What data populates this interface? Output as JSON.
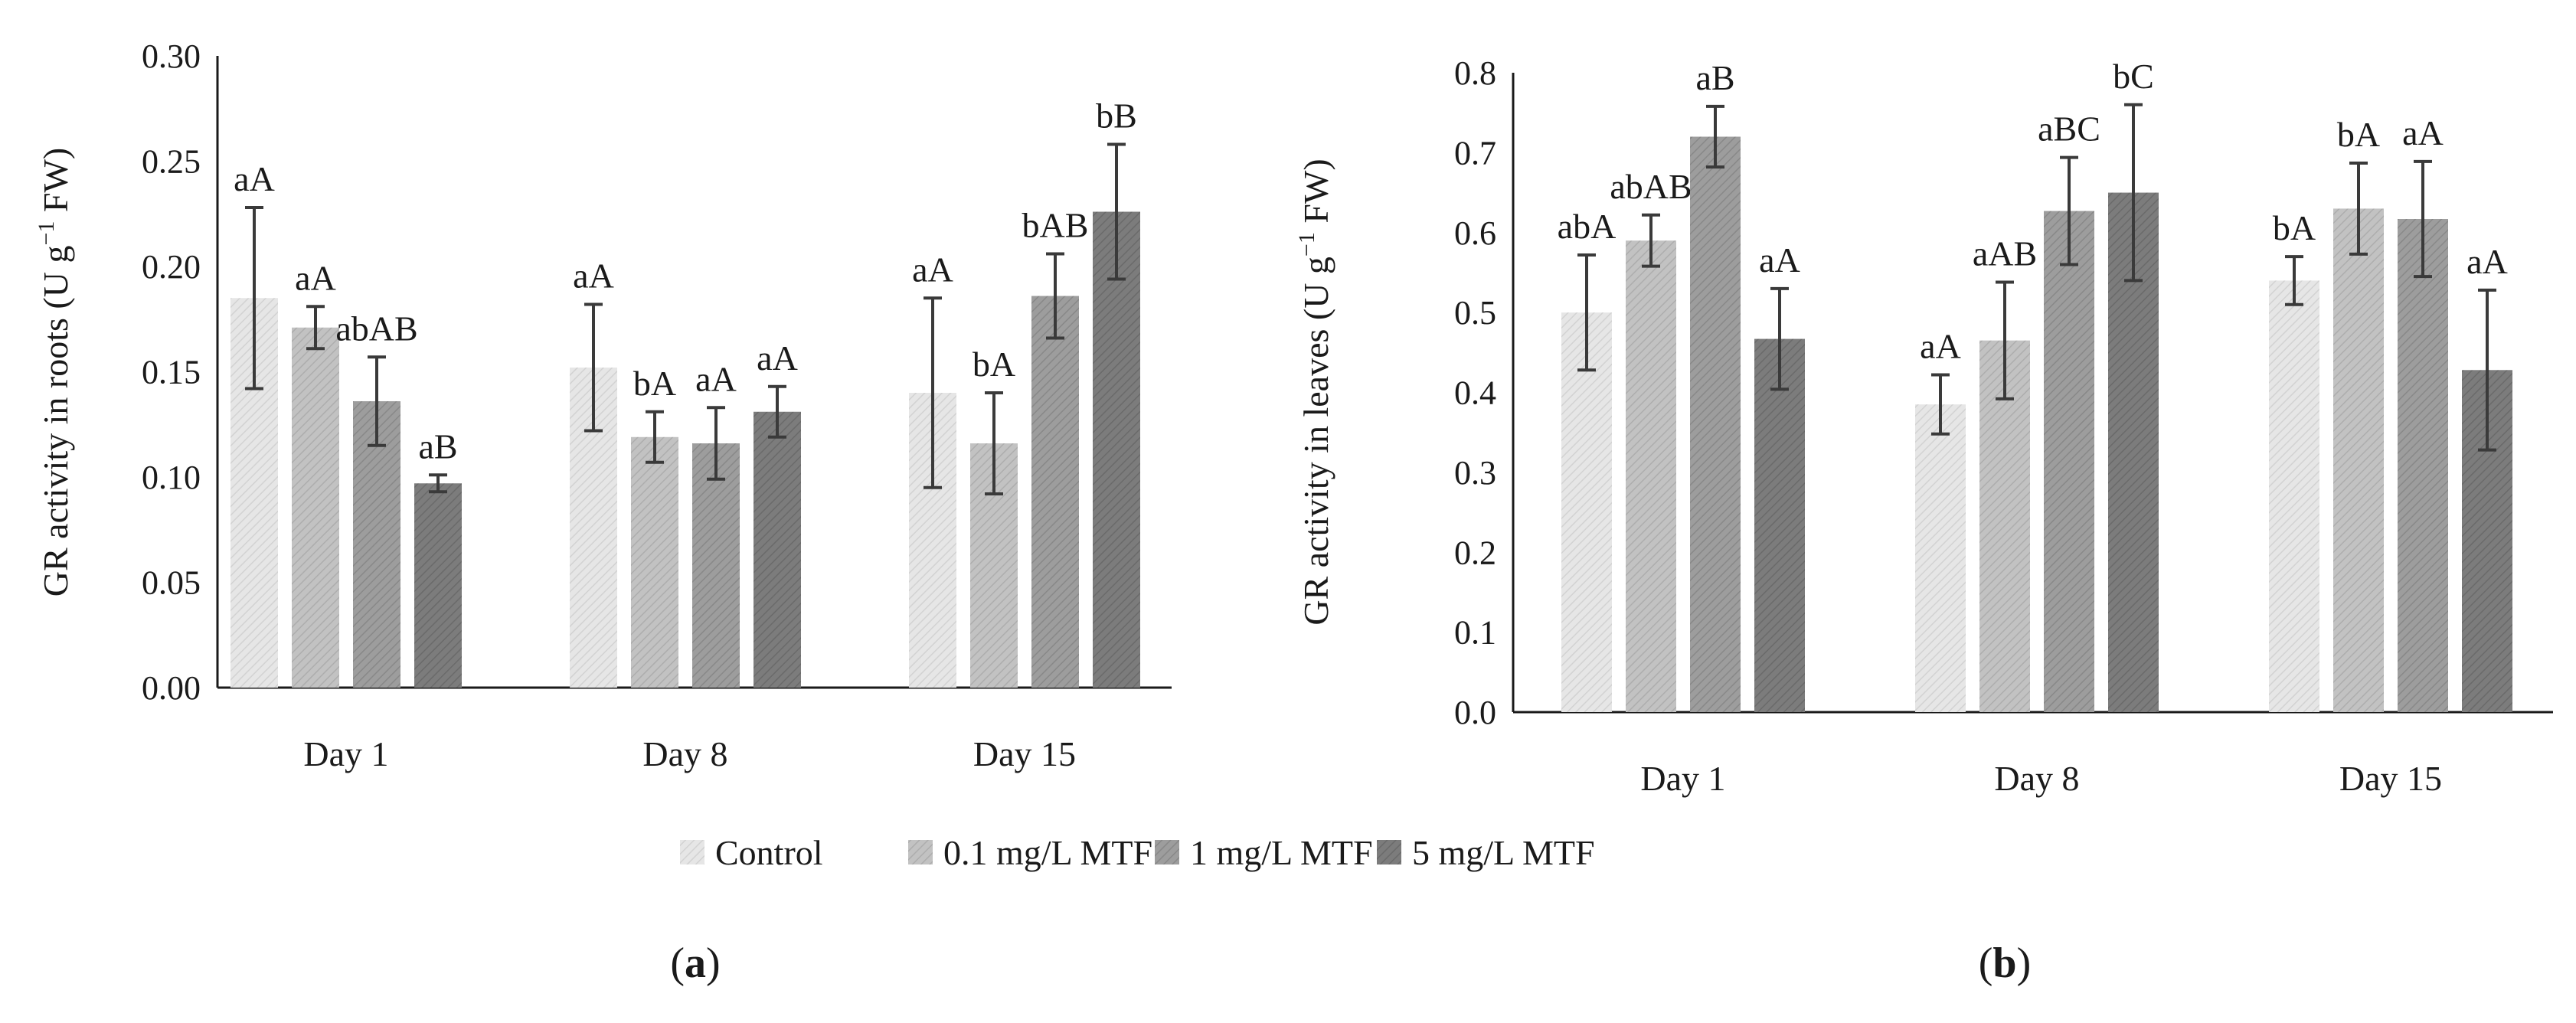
{
  "legend": [
    {
      "name": "Control",
      "color": "#e3e3e3"
    },
    {
      "name": "0.1 mg/L MTF",
      "color": "#bfbfbf"
    },
    {
      "name": "1 mg/L MTF",
      "color": "#9a9a9a"
    },
    {
      "name": "5 mg/L MTF",
      "color": "#7a7a7a"
    }
  ],
  "chart_data": [
    {
      "type": "bar",
      "panel_label": "a",
      "title": "",
      "xlabel": "",
      "ylabel_parts": {
        "pre": "GR activity  in roots (U g",
        "sup": "−1",
        "post": " FW)"
      },
      "ylim": [
        0,
        0.3
      ],
      "yticks": [
        0.0,
        0.05,
        0.1,
        0.15,
        0.2,
        0.25,
        0.3
      ],
      "ytick_labels": [
        "0.00",
        "0.05",
        "0.10",
        "0.15",
        "0.20",
        "0.25",
        "0.30"
      ],
      "categories": [
        "Day 1",
        "Day 8",
        "Day 15"
      ],
      "series": [
        {
          "name": "Control",
          "values": [
            0.185,
            0.152,
            0.14
          ],
          "errors": [
            0.043,
            0.03,
            0.045
          ],
          "labels": [
            "aA",
            "aA",
            "aA"
          ]
        },
        {
          "name": "0.1 mg/L MTF",
          "values": [
            0.171,
            0.119,
            0.116
          ],
          "errors": [
            0.01,
            0.012,
            0.024
          ],
          "labels": [
            "aA",
            "bA",
            "bA"
          ]
        },
        {
          "name": "1 mg/L MTF",
          "values": [
            0.136,
            0.116,
            0.186
          ],
          "errors": [
            0.021,
            0.017,
            0.02
          ],
          "labels": [
            "abAB",
            "aA",
            "bAB"
          ]
        },
        {
          "name": "5 mg/L MTF",
          "values": [
            0.097,
            0.131,
            0.226
          ],
          "errors": [
            0.004,
            0.012,
            0.032
          ],
          "labels": [
            "aB",
            "aA",
            "bB"
          ]
        }
      ]
    },
    {
      "type": "bar",
      "panel_label": "b",
      "title": "",
      "xlabel": "",
      "ylabel_parts": {
        "pre": "GR activity  in leaves  (U g",
        "sup": "−1",
        "post": " FW)"
      },
      "ylim": [
        0,
        0.8
      ],
      "yticks": [
        0.0,
        0.1,
        0.2,
        0.3,
        0.4,
        0.5,
        0.6,
        0.7,
        0.8
      ],
      "ytick_labels": [
        "0.0",
        "0.1",
        "0.2",
        "0.3",
        "0.4",
        "0.5",
        "0.6",
        "0.7",
        "0.8"
      ],
      "categories": [
        "Day 1",
        "Day 8",
        "Day 15"
      ],
      "series": [
        {
          "name": "Control",
          "values": [
            0.5,
            0.385,
            0.54
          ],
          "errors": [
            0.072,
            0.037,
            0.03
          ],
          "labels": [
            "abA",
            "aA",
            "bA"
          ]
        },
        {
          "name": "0.1 mg/L MTF",
          "values": [
            0.59,
            0.465,
            0.63
          ],
          "errors": [
            0.032,
            0.073,
            0.057
          ],
          "labels": [
            "abAB",
            "aAB",
            "bA"
          ]
        },
        {
          "name": "1 mg/L MTF",
          "values": [
            0.72,
            0.627,
            0.617
          ],
          "errors": [
            0.038,
            0.067,
            0.072
          ],
          "labels": [
            "aB",
            "aBC",
            "aA"
          ]
        },
        {
          "name": "5 mg/L MTF",
          "values": [
            0.467,
            0.65,
            0.428
          ],
          "errors": [
            0.063,
            0.11,
            0.1
          ],
          "labels": [
            "aA",
            "bC",
            "aA"
          ]
        }
      ]
    }
  ]
}
